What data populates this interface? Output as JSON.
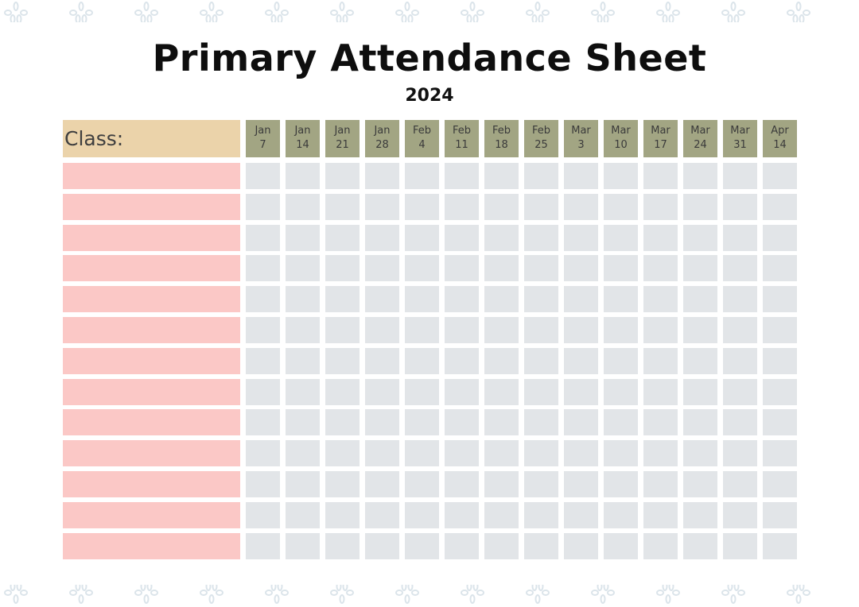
{
  "sheet": {
    "title": "Primary Attendance Sheet",
    "year": "2024",
    "class_label": "Class:"
  },
  "dates": [
    {
      "month": "Jan",
      "day": "7"
    },
    {
      "month": "Jan",
      "day": "14"
    },
    {
      "month": "Jan",
      "day": "21"
    },
    {
      "month": "Jan",
      "day": "28"
    },
    {
      "month": "Feb",
      "day": "4"
    },
    {
      "month": "Feb",
      "day": "11"
    },
    {
      "month": "Feb",
      "day": "18"
    },
    {
      "month": "Feb",
      "day": "25"
    },
    {
      "month": "Mar",
      "day": "3"
    },
    {
      "month": "Mar",
      "day": "10"
    },
    {
      "month": "Mar",
      "day": "17"
    },
    {
      "month": "Mar",
      "day": "24"
    },
    {
      "month": "Mar",
      "day": "31"
    },
    {
      "month": "Apr",
      "day": "14"
    }
  ],
  "student_rows": 13,
  "colors": {
    "class_header": "#ebd3aa",
    "date_header": "#a2a583",
    "name_cell": "#fbc8c6",
    "attendance_cell": "#e2e5e8",
    "decoration": "#dbe4ea"
  }
}
